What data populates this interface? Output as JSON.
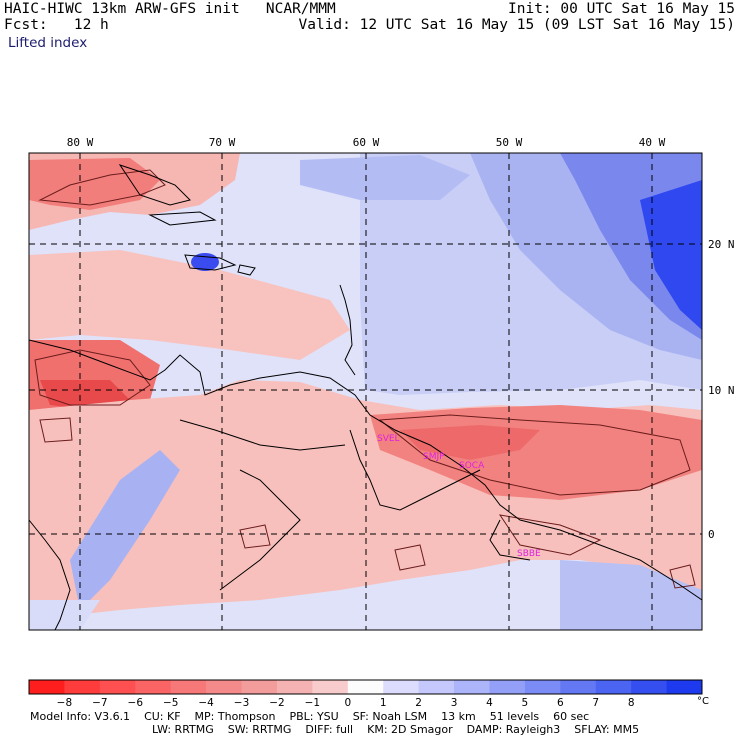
{
  "header": {
    "title": "HAIC-HIWC 13km ARW-GFS init   NCAR/MMM",
    "init": "Init: 00 UTC Sat 16 May 15",
    "fcst": "Fcst:   12 h",
    "valid": "Valid: 12 UTC Sat 16 May 15 (09 LST Sat 16 May 15)",
    "field": "Lifted index"
  },
  "map": {
    "lon_labels": [
      "80 W",
      "70 W",
      "60 W",
      "50 W",
      "40 W"
    ],
    "lat_labels": [
      "20 N",
      "10 N",
      "0"
    ],
    "stations": [
      "SVEL",
      "SMJP",
      "SOCA",
      "SBBE"
    ],
    "colors": {
      "neg_strong": "#e8424a",
      "neg_mid": "#f27c7c",
      "neg_light": "#f9b4b0",
      "near_zero": "#fbe4e2",
      "pos_light": "#d6dafa",
      "pos_mid": "#a8b2f2",
      "pos_strong": "#5566ee",
      "pos_max": "#1a2af0",
      "coast": "#000000",
      "contour": "#6b1c1c",
      "station": "#e020e0"
    }
  },
  "colorbar": {
    "ticks": [
      "−8",
      "−7",
      "−6",
      "−5",
      "−4",
      "−3",
      "−2",
      "−1",
      "0",
      "1",
      "2",
      "3",
      "4",
      "5",
      "6",
      "7",
      "8"
    ],
    "unit": "°C",
    "colors": [
      "#ff1e1e",
      "#ff3c3c",
      "#fe5050",
      "#fa6464",
      "#f77878",
      "#f58a8a",
      "#f39c9c",
      "#f4b2b2",
      "#f8cccc",
      "#fcfcfc",
      "#dcdcfe",
      "#c4c8fc",
      "#acb4fa",
      "#94a0f8",
      "#7c8cf6",
      "#6478f4",
      "#4c64f2",
      "#344ef0",
      "#1e3aee"
    ]
  },
  "footer": {
    "line1": [
      "Model Info: V3.6.1",
      "CU: KF",
      "MP: Thompson",
      "PBL: YSU",
      "SF: Noah LSM",
      "13 km",
      "51 levels",
      "60 sec"
    ],
    "line2": [
      "LW: RRTMG",
      "SW: RRTMG",
      "DIFF: full",
      "KM: 2D Smagor",
      "DAMP: Rayleigh3",
      "SFLAY: MM5"
    ]
  }
}
